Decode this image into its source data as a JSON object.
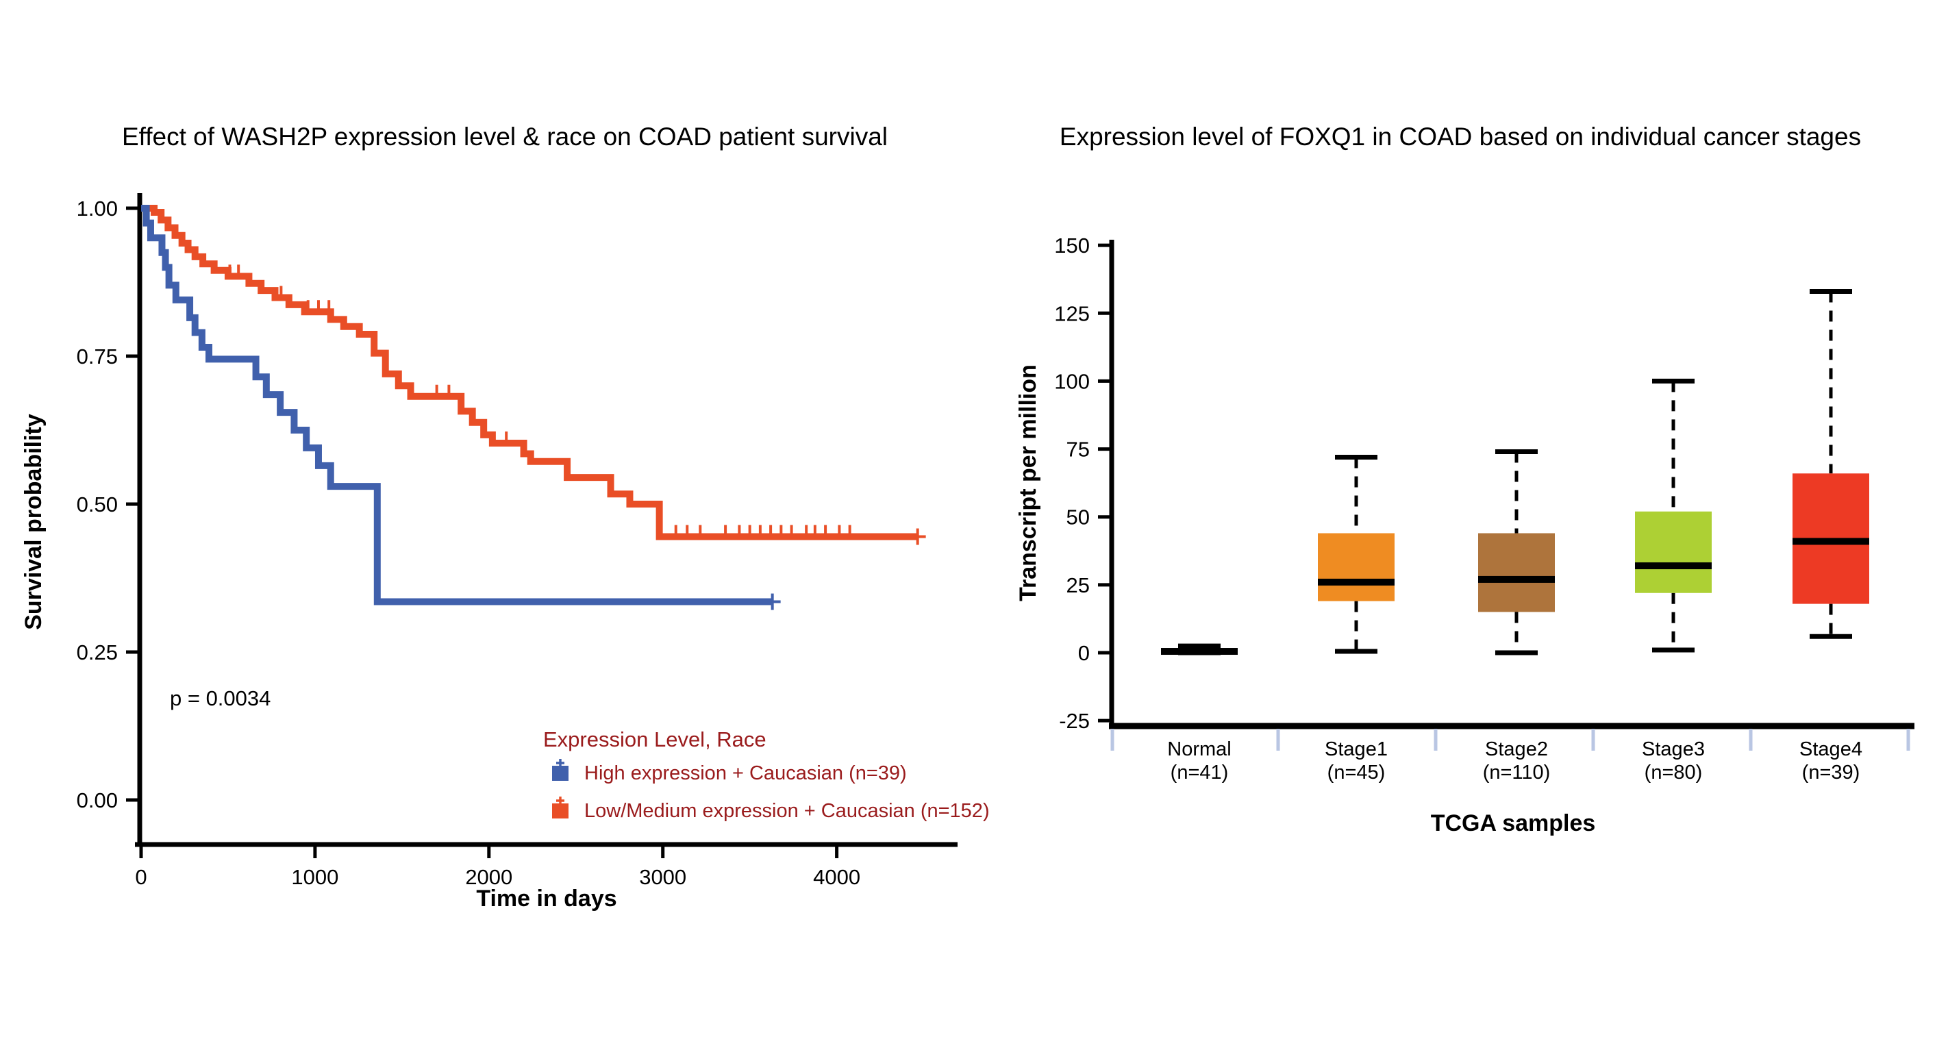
{
  "figure": {
    "background": "#FFFFFF"
  },
  "chart_data": [
    {
      "type": "line",
      "subtype": "kaplan-meier-step",
      "title": "Effect of WASH2P expression level & race on COAD patient survival",
      "xlabel": "Time in days",
      "ylabel": "Survival probability",
      "p_value": "p = 0.0034",
      "legend_title": "Expression Level, Race",
      "legend_text_color": "#9A1B1C",
      "legend_position": "bottom-right",
      "grid": false,
      "xlim": [
        0,
        4600
      ],
      "ylim": [
        0,
        1
      ],
      "x_ticks": [
        "0",
        "1000",
        "2000",
        "3000",
        "4000"
      ],
      "x_tick_values": [
        0,
        1000,
        2000,
        3000,
        4000
      ],
      "y_ticks": [
        "1.00",
        "0.75",
        "0.50",
        "0.25",
        "0.00"
      ],
      "y_tick_values": [
        1.0,
        0.75,
        0.5,
        0.25,
        0.0
      ],
      "series": [
        {
          "name": "High expression + Caucasian (n=39)",
          "color": "#4060AC",
          "steps": [
            [
              0,
              1.0
            ],
            [
              30,
              0.975
            ],
            [
              55,
              0.95
            ],
            [
              120,
              0.925
            ],
            [
              140,
              0.9
            ],
            [
              160,
              0.87
            ],
            [
              200,
              0.845
            ],
            [
              280,
              0.815
            ],
            [
              310,
              0.79
            ],
            [
              350,
              0.765
            ],
            [
              390,
              0.745
            ],
            [
              660,
              0.715
            ],
            [
              720,
              0.685
            ],
            [
              800,
              0.655
            ],
            [
              880,
              0.625
            ],
            [
              950,
              0.595
            ],
            [
              1020,
              0.565
            ],
            [
              1090,
              0.53
            ],
            [
              1358,
              0.335
            ]
          ],
          "end_time": 3630,
          "censor_times": [
            3630
          ]
        },
        {
          "name": "Low/Medium expression + Caucasian (n=152)",
          "color": "#E94E26",
          "steps": [
            [
              0,
              1.0
            ],
            [
              75,
              0.993
            ],
            [
              115,
              0.98
            ],
            [
              155,
              0.967
            ],
            [
              195,
              0.954
            ],
            [
              235,
              0.941
            ],
            [
              270,
              0.93
            ],
            [
              310,
              0.918
            ],
            [
              355,
              0.906
            ],
            [
              420,
              0.895
            ],
            [
              500,
              0.885
            ],
            [
              620,
              0.873
            ],
            [
              690,
              0.861
            ],
            [
              770,
              0.849
            ],
            [
              850,
              0.837
            ],
            [
              940,
              0.825
            ],
            [
              1090,
              0.812
            ],
            [
              1165,
              0.8
            ],
            [
              1255,
              0.787
            ],
            [
              1340,
              0.755
            ],
            [
              1405,
              0.72
            ],
            [
              1480,
              0.7
            ],
            [
              1550,
              0.682
            ],
            [
              1840,
              0.657
            ],
            [
              1905,
              0.638
            ],
            [
              1970,
              0.617
            ],
            [
              2020,
              0.603
            ],
            [
              2200,
              0.585
            ],
            [
              2240,
              0.572
            ],
            [
              2450,
              0.545
            ],
            [
              2700,
              0.517
            ],
            [
              2810,
              0.5
            ],
            [
              2980,
              0.445
            ]
          ],
          "end_time": 4465,
          "censor_times": [
            510,
            560,
            805,
            960,
            1020,
            1080,
            1700,
            1770,
            1840,
            2100,
            3075,
            3140,
            3215,
            3360,
            3440,
            3500,
            3560,
            3620,
            3680,
            3740,
            3825,
            3875,
            3935,
            4015,
            4075,
            4465
          ]
        }
      ]
    },
    {
      "type": "box",
      "title": "Expression level of FOXQ1 in COAD based on individual cancer stages",
      "title_color": "#3A3A3A",
      "xlabel": "TCGA samples",
      "xlabel_color": "#888888",
      "ylabel": "Transcript per million",
      "grid": false,
      "ylim": [
        -25,
        150
      ],
      "y_ticks": [
        "150",
        "125",
        "100",
        "75",
        "50",
        "25",
        "0",
        "-25"
      ],
      "y_tick_values": [
        150,
        125,
        100,
        75,
        50,
        25,
        0,
        -25
      ],
      "separator_color": "#B9C6E3",
      "categories": [
        {
          "label": "Normal",
          "count": "(n=41)",
          "color": "#4F58A7",
          "whisker_low": 0,
          "q1": -0.7,
          "median": 0.5,
          "q3": 1.2,
          "whisker_high": 2.5
        },
        {
          "label": "Stage1",
          "count": "(n=45)",
          "color": "#EF8C22",
          "whisker_low": 0.5,
          "q1": 19,
          "median": 26,
          "q3": 44,
          "whisker_high": 72
        },
        {
          "label": "Stage2",
          "count": "(n=110)",
          "color": "#AE743C",
          "whisker_low": 0,
          "q1": 15,
          "median": 27,
          "q3": 44,
          "whisker_high": 74
        },
        {
          "label": "Stage3",
          "count": "(n=80)",
          "color": "#ADD034",
          "whisker_low": 1,
          "q1": 22,
          "median": 32,
          "q3": 52,
          "whisker_high": 100
        },
        {
          "label": "Stage4",
          "count": "(n=39)",
          "color": "#ED3A24",
          "whisker_low": 6,
          "q1": 18,
          "median": 41,
          "q3": 66,
          "whisker_high": 133
        }
      ]
    }
  ]
}
